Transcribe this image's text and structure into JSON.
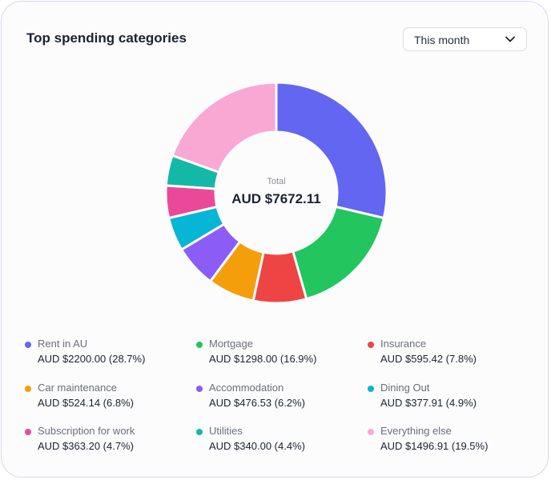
{
  "header": {
    "title": "Top spending categories"
  },
  "filter": {
    "selected": "This month",
    "icon": "chevron-down-icon"
  },
  "chart_data": {
    "type": "donut",
    "title": "Top spending categories",
    "center_label": "Total",
    "center_value": "AUD $7672.11",
    "total": 7672.11,
    "legend_position": "bottom",
    "categories": [
      "Rent in AU",
      "Mortgage",
      "Insurance",
      "Car maintenance",
      "Accommodation",
      "Dining Out",
      "Subscription for work",
      "Utilities",
      "Everything else"
    ],
    "values": [
      2200.0,
      1298.0,
      595.42,
      524.14,
      476.53,
      377.91,
      363.2,
      340.0,
      1496.91
    ],
    "percent": [
      28.7,
      16.9,
      7.8,
      6.8,
      6.2,
      4.9,
      4.7,
      4.4,
      19.5
    ],
    "amount_labels": [
      "AUD $2200.00 (28.7%)",
      "AUD $1298.00 (16.9%)",
      "AUD $595.42 (7.8%)",
      "AUD $524.14 (6.8%)",
      "AUD $476.53 (6.2%)",
      "AUD $377.91 (4.9%)",
      "AUD $363.20 (4.7%)",
      "AUD $340.00 (4.4%)",
      "AUD $1496.91 (19.5%)"
    ],
    "colors": [
      "#6366f1",
      "#22c55e",
      "#ef4444",
      "#f59e0b",
      "#8b5cf6",
      "#06b6d4",
      "#ec4899",
      "#14b8a6",
      "#f9a8d4"
    ]
  }
}
